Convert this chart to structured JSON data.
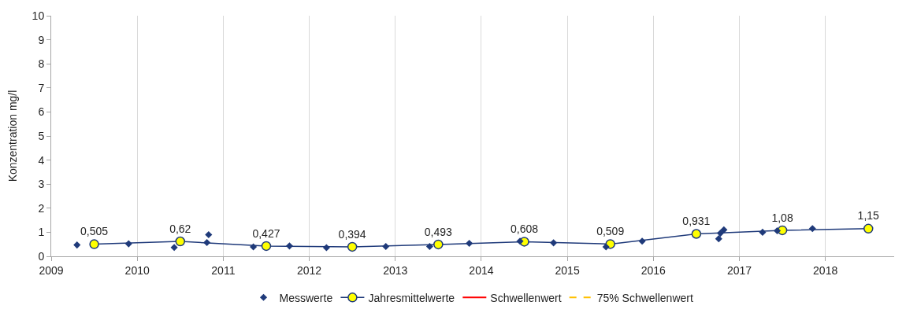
{
  "chart_data": {
    "type": "line",
    "ylabel": "Konzentration mg/l",
    "xlim": [
      2009,
      2018.8
    ],
    "xticks": [
      2009,
      2010,
      2011,
      2012,
      2013,
      2014,
      2015,
      2016,
      2017,
      2018
    ],
    "ylim": [
      0,
      10
    ],
    "yticks": [
      0,
      1,
      2,
      3,
      4,
      5,
      6,
      7,
      8,
      9,
      10
    ],
    "grid": "x",
    "legend": "bottom",
    "series": [
      {
        "name": "Messwerte",
        "type": "scatter",
        "marker": "diamond",
        "color": "#1f3a7a",
        "x": [
          2009.3,
          2009.9,
          2010.43,
          2010.81,
          2010.83,
          2011.35,
          2011.77,
          2012.2,
          2012.89,
          2013.4,
          2013.86,
          2014.45,
          2014.84,
          2015.45,
          2015.87,
          2016.76,
          2016.78,
          2016.82,
          2017.27,
          2017.44,
          2017.85
        ],
        "values": [
          0.47,
          0.52,
          0.37,
          0.57,
          0.9,
          0.39,
          0.43,
          0.36,
          0.41,
          0.41,
          0.54,
          0.63,
          0.56,
          0.39,
          0.63,
          0.73,
          0.96,
          1.1,
          1.0,
          1.06,
          1.15
        ]
      },
      {
        "name": "Jahresmittelwerte",
        "marker": "circle",
        "color": "#1f3a7a",
        "colors": [
          "#ffff00",
          "#ffff00",
          "#ffff00",
          "#ffff00",
          "#ffff00",
          "#ffff00",
          "#ffff00",
          "#ffff00",
          "#ffff00",
          "#ffff00"
        ],
        "x": [
          2009.5,
          2010.5,
          2011.5,
          2012.5,
          2013.5,
          2014.5,
          2015.5,
          2016.5,
          2017.5,
          2018.5
        ],
        "values": [
          0.505,
          0.62,
          0.427,
          0.394,
          0.493,
          0.608,
          0.509,
          0.931,
          1.08,
          1.15
        ],
        "value_labels": [
          "0,505",
          "0,62",
          "0,427",
          "0,394",
          "0,493",
          "0,608",
          "0,509",
          "0,931",
          "1,08",
          "1,15"
        ]
      },
      {
        "name": "Schwellenwert",
        "type": "line",
        "marker": "none",
        "line_style": "solid",
        "color": "#ff0000"
      },
      {
        "name": "75% Schwellenwert",
        "type": "line",
        "marker": "none",
        "line_style": "dashed",
        "color": "#ffc000"
      }
    ]
  }
}
